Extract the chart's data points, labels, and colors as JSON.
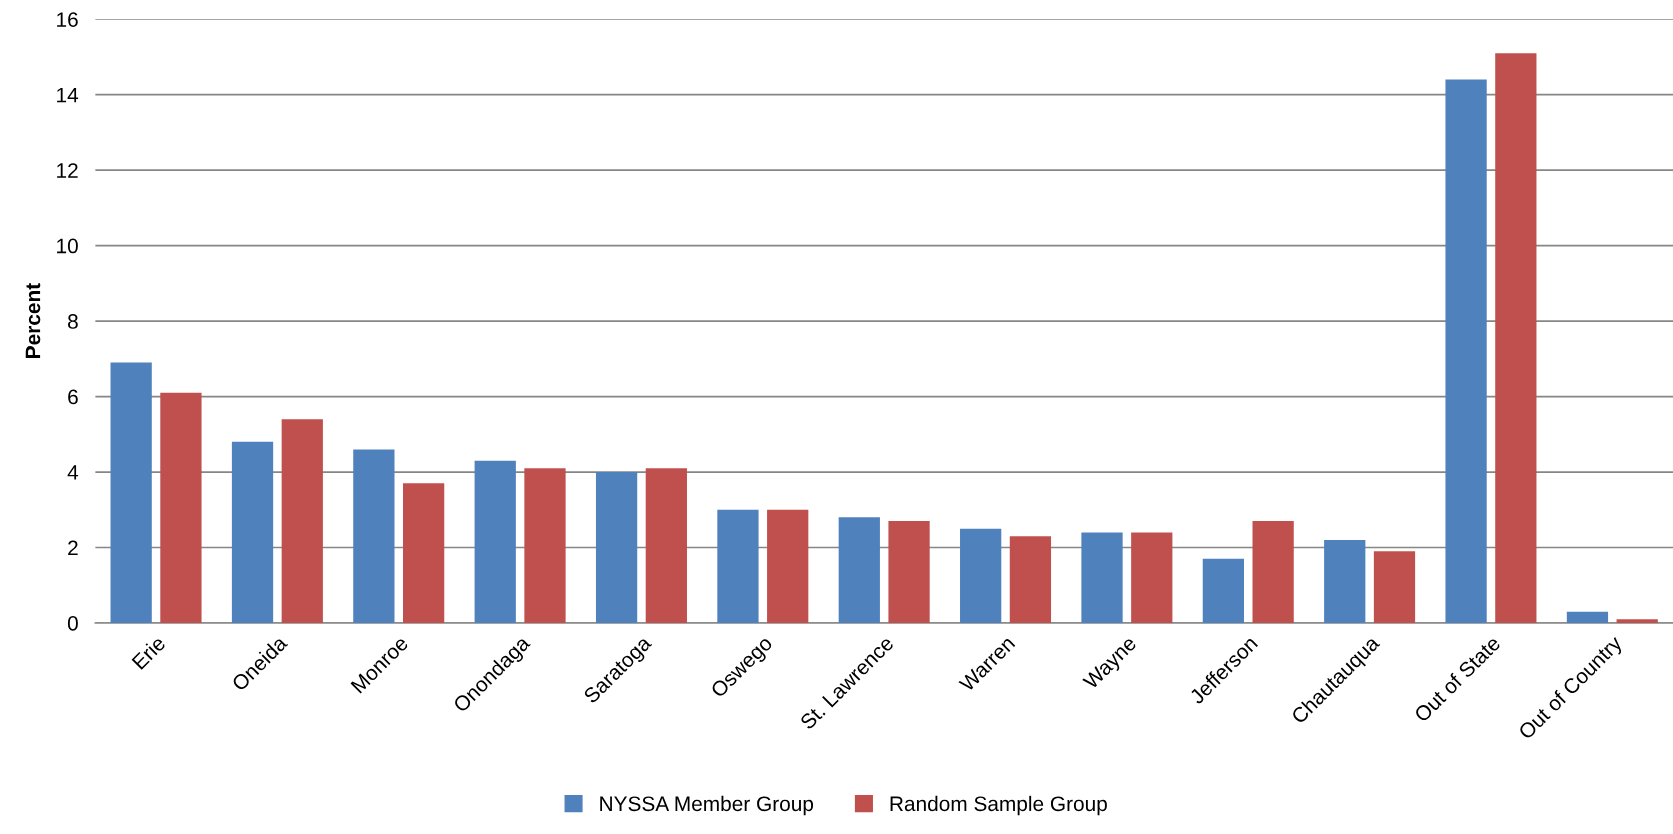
{
  "chart_data": {
    "type": "bar",
    "ylabel": "Percent",
    "categories": [
      "Erie",
      "Oneida",
      "Monroe",
      "Onondaga",
      "Saratoga",
      "Oswego",
      "St. Lawrence",
      "Warren",
      "Wayne",
      "Jefferson",
      "Chautauqua",
      "Out of State",
      "Out of Country"
    ],
    "series": [
      {
        "name": "NYSSA Member Group",
        "color": "#4f81bd",
        "values": [
          6.9,
          4.8,
          4.6,
          4.3,
          4.0,
          3.0,
          2.8,
          2.5,
          2.4,
          1.7,
          2.2,
          14.4,
          0.3
        ]
      },
      {
        "name": "Random Sample Group",
        "color": "#c0504d",
        "values": [
          6.1,
          5.4,
          3.7,
          4.1,
          4.1,
          3.0,
          2.7,
          2.3,
          2.4,
          2.7,
          1.9,
          15.1,
          0.1
        ]
      }
    ],
    "ylim": [
      0,
      16
    ],
    "yticks": [
      0,
      2,
      4,
      6,
      8,
      10,
      12,
      14,
      16
    ],
    "grid": "y",
    "legend": "bottom"
  }
}
